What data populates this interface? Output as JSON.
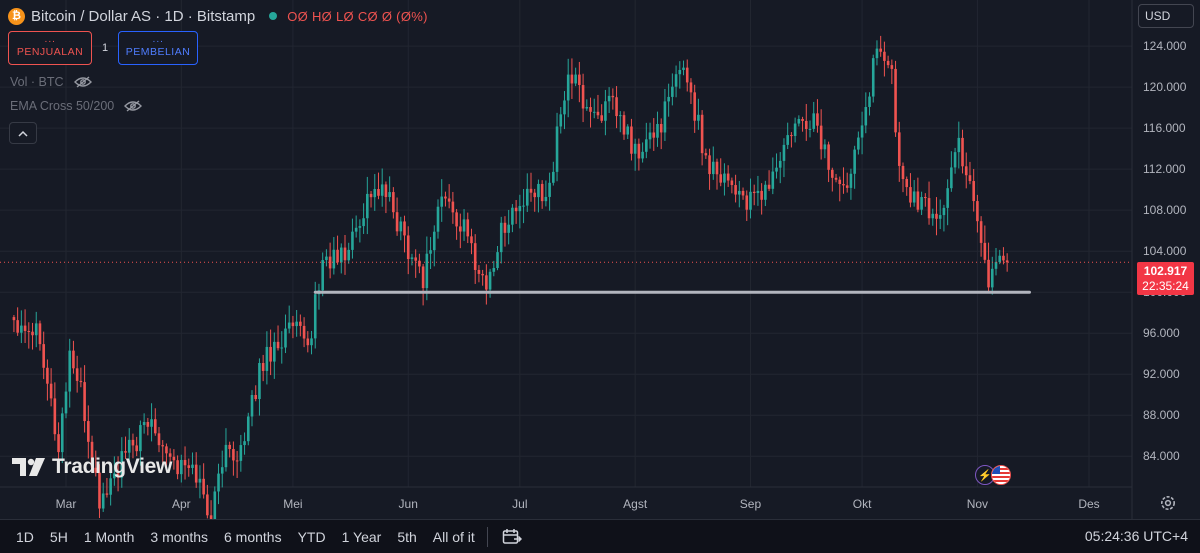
{
  "header": {
    "title": "Bitcoin / Dollar AS · 1D · Bitstamp",
    "ohlc": "OØ HØ LØ CØ Ø (Ø%)",
    "btc_symbol": "₿"
  },
  "trade": {
    "dots": "···",
    "sell_label": "PENJUALAN",
    "buy_label": "PEMBELIAN",
    "quantity": "1"
  },
  "indicators": [
    {
      "label": "Vol · BTC"
    },
    {
      "label": "EMA Cross 50/200"
    }
  ],
  "currency": "USD",
  "last_price": {
    "value": "102.917",
    "countdown": "22:35:24"
  },
  "watermark": "TradingView",
  "bottom_bar": {
    "ranges": [
      "1D",
      "5H",
      "1 Month",
      "3 months",
      "6 months",
      "YTD",
      "1 Year",
      "5th",
      "All of it"
    ],
    "clock": "05:24:36 UTC+4"
  },
  "colors": {
    "up": "#26a69a",
    "down": "#ef5350",
    "support_line": "#b2b5be",
    "price_tag": "#f23645"
  },
  "chart_data": {
    "type": "candlestick",
    "x_tick_labels": [
      "Mar",
      "Apr",
      "Mei",
      "Jun",
      "Jul",
      "Agst",
      "Sep",
      "Okt",
      "Nov",
      "Des"
    ],
    "y_tick_labels": [
      "84.000",
      "88.000",
      "92.000",
      "96.000",
      "100.000",
      "104.000",
      "108.000",
      "112.000",
      "116.000",
      "120.000",
      "124.000"
    ],
    "y_ticks": [
      84000,
      88000,
      92000,
      96000,
      100000,
      104000,
      108000,
      112000,
      116000,
      120000,
      124000
    ],
    "ylim": [
      81000,
      128500
    ],
    "x_months": [
      "2025-03",
      "2025-04",
      "2025-05",
      "2025-06",
      "2025-07",
      "2025-08",
      "2025-09",
      "2025-10",
      "2025-11",
      "2025-12"
    ],
    "support_level": 100000,
    "support_range": [
      "2025-05-07",
      "2025-11-15"
    ],
    "last_close": 102917,
    "close_path": [
      [
        "2025-02-15",
        97500
      ],
      [
        "2025-02-22",
        96200
      ],
      [
        "2025-02-27",
        84500
      ],
      [
        "2025-03-02",
        94200
      ],
      [
        "2025-03-05",
        90000
      ],
      [
        "2025-03-10",
        79500
      ],
      [
        "2025-03-17",
        84000
      ],
      [
        "2025-03-24",
        87500
      ],
      [
        "2025-03-31",
        83000
      ],
      [
        "2025-04-05",
        82500
      ],
      [
        "2025-04-09",
        77500
      ],
      [
        "2025-04-12",
        84000
      ],
      [
        "2025-04-18",
        85000
      ],
      [
        "2025-04-22",
        92500
      ],
      [
        "2025-04-25",
        94500
      ],
      [
        "2025-05-01",
        96500
      ],
      [
        "2025-05-05",
        94500
      ],
      [
        "2025-05-09",
        103000
      ],
      [
        "2025-05-15",
        103500
      ],
      [
        "2025-05-22",
        110000
      ],
      [
        "2025-05-26",
        109500
      ],
      [
        "2025-06-01",
        104500
      ],
      [
        "2025-06-05",
        101500
      ],
      [
        "2025-06-10",
        109500
      ],
      [
        "2025-06-16",
        106000
      ],
      [
        "2025-06-22",
        100500
      ],
      [
        "2025-06-27",
        107000
      ],
      [
        "2025-07-03",
        109000
      ],
      [
        "2025-07-09",
        110500
      ],
      [
        "2025-07-14",
        121500
      ],
      [
        "2025-07-20",
        117500
      ],
      [
        "2025-07-26",
        118000
      ],
      [
        "2025-08-02",
        113000
      ],
      [
        "2025-08-09",
        117500
      ],
      [
        "2025-08-14",
        122500
      ],
      [
        "2025-08-20",
        113000
      ],
      [
        "2025-08-25",
        111500
      ],
      [
        "2025-09-01",
        108500
      ],
      [
        "2025-09-06",
        110500
      ],
      [
        "2025-09-12",
        115500
      ],
      [
        "2025-09-18",
        117000
      ],
      [
        "2025-09-22",
        112500
      ],
      [
        "2025-09-26",
        109500
      ],
      [
        "2025-10-01",
        117500
      ],
      [
        "2025-10-06",
        124500
      ],
      [
        "2025-10-09",
        121000
      ],
      [
        "2025-10-11",
        111500
      ],
      [
        "2025-10-16",
        108500
      ],
      [
        "2025-10-22",
        107500
      ],
      [
        "2025-10-27",
        114500
      ],
      [
        "2025-10-31",
        109500
      ],
      [
        "2025-11-04",
        101000
      ],
      [
        "2025-11-06",
        103500
      ],
      [
        "2025-11-09",
        102917
      ]
    ]
  }
}
